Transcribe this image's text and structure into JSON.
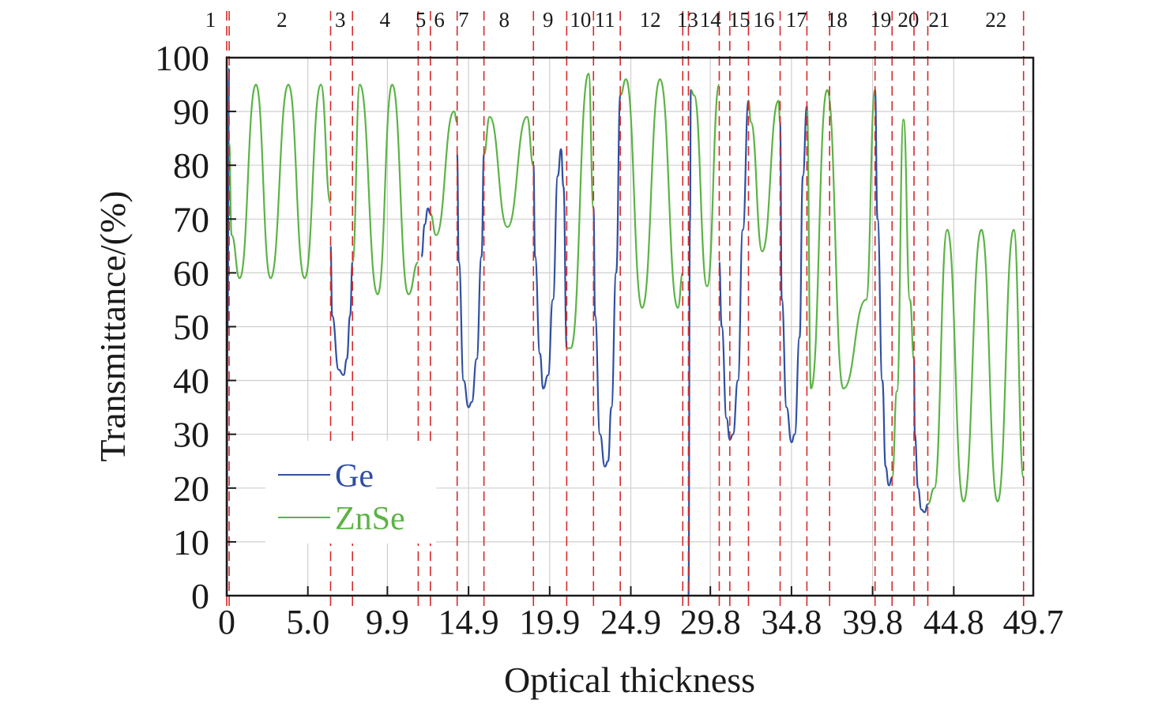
{
  "chart_data": {
    "type": "line",
    "xlabel": "Optical thickness",
    "ylabel": "Transmittance/(%)",
    "xlim": [
      0,
      49.7
    ],
    "ylim": [
      0,
      100
    ],
    "x_ticks": [
      0,
      5.0,
      9.9,
      14.9,
      19.9,
      24.9,
      29.8,
      34.8,
      39.8,
      44.8,
      49.7
    ],
    "x_tick_labels": [
      "0",
      "5.0",
      "9.9",
      "14.9",
      "19.9",
      "24.9",
      "29.8",
      "34.8",
      "39.8",
      "44.8",
      "49.7"
    ],
    "y_ticks": [
      0,
      10,
      20,
      30,
      40,
      50,
      60,
      70,
      80,
      90,
      100
    ],
    "y_tick_labels": [
      "0",
      "10",
      "20",
      "30",
      "40",
      "50",
      "60",
      "70",
      "80",
      "90",
      "100"
    ],
    "grid": true,
    "legend_position": "lower-left",
    "layer_boundaries": [
      0,
      0.15,
      6.4,
      7.75,
      11.8,
      12.55,
      14.2,
      15.85,
      18.9,
      20.95,
      22.6,
      24.25,
      28.1,
      28.45,
      30.35,
      31.0,
      32.15,
      34.1,
      35.75,
      37.15,
      39.95,
      41.0,
      42.35,
      43.2,
      49.1
    ],
    "layer_labels": [
      {
        "label": "1",
        "x": -1.0
      },
      {
        "label": "2",
        "x": 3.4
      },
      {
        "label": "3",
        "x": 7.0
      },
      {
        "label": "4",
        "x": 9.75
      },
      {
        "label": "5",
        "x": 11.95
      },
      {
        "label": "6",
        "x": 13.1
      },
      {
        "label": "7",
        "x": 14.6
      },
      {
        "label": "8",
        "x": 17.1
      },
      {
        "label": "9",
        "x": 19.8
      },
      {
        "label": "10",
        "x": 21.8
      },
      {
        "label": "11",
        "x": 23.3
      },
      {
        "label": "12",
        "x": 26.1
      },
      {
        "label": "13",
        "x": 28.4
      },
      {
        "label": "14",
        "x": 29.8
      },
      {
        "label": "15",
        "x": 31.6
      },
      {
        "label": "16",
        "x": 33.1
      },
      {
        "label": "17",
        "x": 35.1
      },
      {
        "label": "18",
        "x": 37.6
      },
      {
        "label": "19",
        "x": 40.3
      },
      {
        "label": "20",
        "x": 42.0
      },
      {
        "label": "21",
        "x": 43.9
      },
      {
        "label": "22",
        "x": 47.4
      }
    ],
    "series": [
      {
        "name": "Ge",
        "color": "#2f4fa1",
        "segments": [
          {
            "x": [
              0.0,
              0.05,
              0.15
            ],
            "y": [
              0,
              50,
              98
            ]
          },
          {
            "x": [
              6.4,
              6.5,
              6.9,
              7.2,
              7.4,
              7.6,
              7.75
            ],
            "y": [
              65,
              52,
              42,
              41,
              44,
              52,
              62
            ]
          },
          {
            "x": [
              12.0,
              12.2,
              12.4,
              12.55
            ],
            "y": [
              63,
              69,
              72,
              71
            ]
          },
          {
            "x": [
              14.2,
              14.3,
              14.6,
              14.9,
              15.1,
              15.4,
              15.7,
              15.85
            ],
            "y": [
              82,
              62,
              40,
              35,
              36,
              44,
              63,
              82
            ]
          },
          {
            "x": [
              18.9,
              19.0,
              19.3,
              19.5,
              19.8,
              20.1,
              20.4,
              20.6,
              20.75,
              20.95
            ],
            "y": [
              80,
              63,
              45,
              38.5,
              41,
              55,
              78,
              83,
              76,
              46
            ]
          },
          {
            "x": [
              22.6,
              22.7,
              23.0,
              23.3,
              23.5,
              23.7,
              24.0,
              24.25
            ],
            "y": [
              72,
              52,
              30,
              24,
              25,
              35,
              60,
              93
            ]
          },
          {
            "x": [
              28.45,
              28.55,
              28.6
            ],
            "y": [
              0,
              70,
              94
            ]
          },
          {
            "x": [
              30.35,
              30.5,
              30.8,
              31.0,
              31.2,
              31.5,
              31.8,
              32.15
            ],
            "y": [
              62,
              50,
              33,
              29,
              30,
              40,
              68,
              92
            ]
          },
          {
            "x": [
              34.1,
              34.2,
              34.5,
              34.8,
              35.0,
              35.3,
              35.5,
              35.75
            ],
            "y": [
              88,
              55,
              35,
              28.5,
              30,
              48,
              78,
              91
            ]
          },
          {
            "x": [
              39.95,
              40.1,
              40.4,
              40.6,
              40.8,
              41.0
            ],
            "y": [
              94,
              70,
              40,
              24,
              20.5,
              22
            ]
          },
          {
            "x": [
              42.35,
              42.4,
              42.6,
              42.8,
              43.0,
              43.2
            ],
            "y": [
              44,
              30,
              20,
              16,
              15.5,
              17
            ]
          }
        ]
      },
      {
        "name": "ZnSe",
        "color": "#5cb346",
        "segments": [
          {
            "x": [
              0.15,
              0.3,
              0.8,
              1.8,
              2.7,
              3.8,
              4.8,
              5.8,
              6.4
            ],
            "y": [
              84,
              67,
              59,
              95,
              59,
              95,
              59,
              95,
              73
            ]
          },
          {
            "x": [
              7.75,
              8.2,
              9.3,
              10.2,
              11.2,
              11.8
            ],
            "y": [
              62,
              95,
              56,
              95,
              56,
              62
            ]
          },
          {
            "x": [
              12.55,
              12.9,
              14.0,
              14.2
            ],
            "y": [
              71,
              67,
              90,
              88
            ]
          },
          {
            "x": [
              15.85,
              16.2,
              17.3,
              18.5,
              18.9
            ],
            "y": [
              82,
              89,
              68.5,
              89,
              80
            ]
          },
          {
            "x": [
              20.95,
              21.2,
              22.3,
              22.6
            ],
            "y": [
              46,
              46,
              97,
              72
            ]
          },
          {
            "x": [
              24.25,
              24.6,
              25.6,
              26.7,
              27.8,
              28.1
            ],
            "y": [
              93,
              96,
              53.5,
              96,
              53.5,
              60
            ]
          },
          {
            "x": [
              28.6,
              28.8,
              29.6,
              30.35
            ],
            "y": [
              94,
              93,
              57.5,
              95
            ]
          },
          {
            "x": [
              32.15,
              32.3,
              33.0,
              34.0,
              34.1
            ],
            "y": [
              92,
              88,
              64,
              92,
              88
            ]
          },
          {
            "x": [
              35.75,
              36.0,
              37.0,
              38.0,
              39.4,
              39.95
            ],
            "y": [
              91,
              38.5,
              94,
              38.5,
              55,
              94
            ]
          },
          {
            "x": [
              41.0,
              41.3,
              41.7,
              42.1,
              42.35
            ],
            "y": [
              22,
              38,
              88.5,
              55,
              44
            ]
          },
          {
            "x": [
              43.2,
              43.6,
              44.4,
              45.4,
              46.5,
              47.5,
              48.5,
              49.1
            ],
            "y": [
              17,
              20,
              68,
              17.5,
              68,
              17.5,
              68,
              22
            ]
          }
        ]
      }
    ]
  }
}
